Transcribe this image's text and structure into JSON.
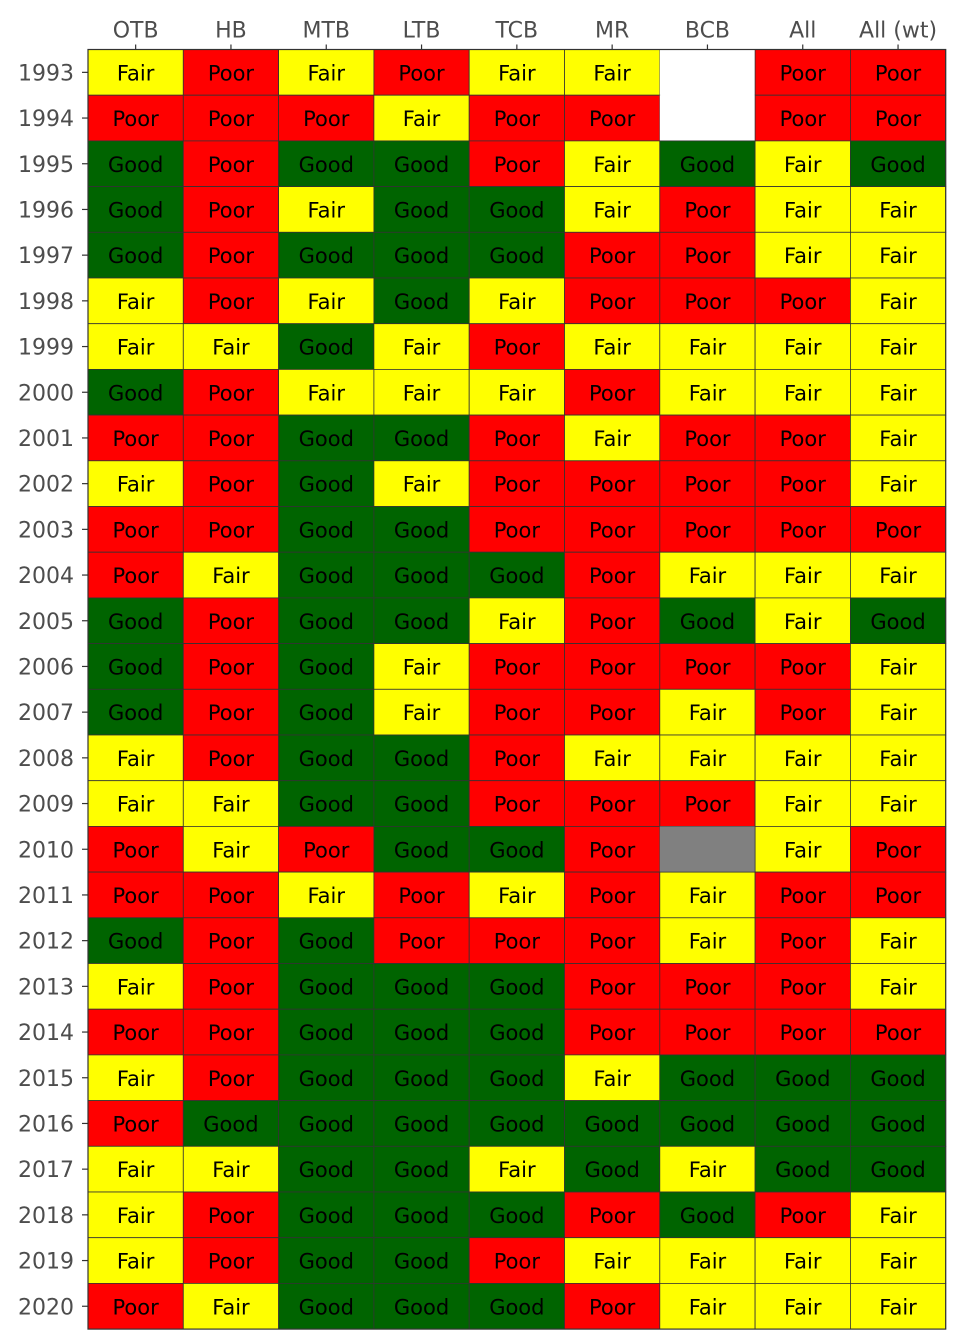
{
  "chart_data": {
    "type": "heatmap",
    "columns": [
      "OTB",
      "HB",
      "MTB",
      "LTB",
      "TCB",
      "MR",
      "BCB",
      "All",
      "All (wt)"
    ],
    "rows": [
      "1993",
      "1994",
      "1995",
      "1996",
      "1997",
      "1998",
      "1999",
      "2000",
      "2001",
      "2002",
      "2003",
      "2004",
      "2005",
      "2006",
      "2007",
      "2008",
      "2009",
      "2010",
      "2011",
      "2012",
      "2013",
      "2014",
      "2015",
      "2016",
      "2017",
      "2018",
      "2019",
      "2020"
    ],
    "values": [
      [
        "Fair",
        "Poor",
        "Fair",
        "Poor",
        "Fair",
        "Fair",
        "",
        "Poor",
        "Poor"
      ],
      [
        "Poor",
        "Poor",
        "Poor",
        "Fair",
        "Poor",
        "Poor",
        "",
        "Poor",
        "Poor"
      ],
      [
        "Good",
        "Poor",
        "Good",
        "Good",
        "Poor",
        "Fair",
        "Good",
        "Fair",
        "Good"
      ],
      [
        "Good",
        "Poor",
        "Fair",
        "Good",
        "Good",
        "Fair",
        "Poor",
        "Fair",
        "Fair"
      ],
      [
        "Good",
        "Poor",
        "Good",
        "Good",
        "Good",
        "Poor",
        "Poor",
        "Fair",
        "Fair"
      ],
      [
        "Fair",
        "Poor",
        "Fair",
        "Good",
        "Fair",
        "Poor",
        "Poor",
        "Poor",
        "Fair"
      ],
      [
        "Fair",
        "Fair",
        "Good",
        "Fair",
        "Poor",
        "Fair",
        "Fair",
        "Fair",
        "Fair"
      ],
      [
        "Good",
        "Poor",
        "Fair",
        "Fair",
        "Fair",
        "Poor",
        "Fair",
        "Fair",
        "Fair"
      ],
      [
        "Poor",
        "Poor",
        "Good",
        "Good",
        "Poor",
        "Fair",
        "Poor",
        "Poor",
        "Fair"
      ],
      [
        "Fair",
        "Poor",
        "Good",
        "Fair",
        "Poor",
        "Poor",
        "Poor",
        "Poor",
        "Fair"
      ],
      [
        "Poor",
        "Poor",
        "Good",
        "Good",
        "Poor",
        "Poor",
        "Poor",
        "Poor",
        "Poor"
      ],
      [
        "Poor",
        "Fair",
        "Good",
        "Good",
        "Good",
        "Poor",
        "Fair",
        "Fair",
        "Fair"
      ],
      [
        "Good",
        "Poor",
        "Good",
        "Good",
        "Fair",
        "Poor",
        "Good",
        "Fair",
        "Good"
      ],
      [
        "Good",
        "Poor",
        "Good",
        "Fair",
        "Poor",
        "Poor",
        "Poor",
        "Poor",
        "Fair"
      ],
      [
        "Good",
        "Poor",
        "Good",
        "Fair",
        "Poor",
        "Poor",
        "Fair",
        "Poor",
        "Fair"
      ],
      [
        "Fair",
        "Poor",
        "Good",
        "Good",
        "Poor",
        "Fair",
        "Fair",
        "Fair",
        "Fair"
      ],
      [
        "Fair",
        "Fair",
        "Good",
        "Good",
        "Poor",
        "Poor",
        "Poor",
        "Fair",
        "Fair"
      ],
      [
        "Poor",
        "Fair",
        "Poor",
        "Good",
        "Good",
        "Poor",
        "NA",
        "Fair",
        "Poor"
      ],
      [
        "Poor",
        "Poor",
        "Fair",
        "Poor",
        "Fair",
        "Poor",
        "Fair",
        "Poor",
        "Poor"
      ],
      [
        "Good",
        "Poor",
        "Good",
        "Poor",
        "Poor",
        "Poor",
        "Fair",
        "Poor",
        "Fair"
      ],
      [
        "Fair",
        "Poor",
        "Good",
        "Good",
        "Good",
        "Poor",
        "Poor",
        "Poor",
        "Fair"
      ],
      [
        "Poor",
        "Poor",
        "Good",
        "Good",
        "Good",
        "Poor",
        "Poor",
        "Poor",
        "Poor"
      ],
      [
        "Fair",
        "Poor",
        "Good",
        "Good",
        "Good",
        "Fair",
        "Good",
        "Good",
        "Good"
      ],
      [
        "Poor",
        "Good",
        "Good",
        "Good",
        "Good",
        "Good",
        "Good",
        "Good",
        "Good"
      ],
      [
        "Fair",
        "Fair",
        "Good",
        "Good",
        "Fair",
        "Good",
        "Fair",
        "Good",
        "Good"
      ],
      [
        "Fair",
        "Poor",
        "Good",
        "Good",
        "Good",
        "Poor",
        "Good",
        "Poor",
        "Fair"
      ],
      [
        "Fair",
        "Poor",
        "Good",
        "Good",
        "Poor",
        "Fair",
        "Fair",
        "Fair",
        "Fair"
      ],
      [
        "Poor",
        "Fair",
        "Good",
        "Good",
        "Good",
        "Poor",
        "Fair",
        "Fair",
        "Fair"
      ]
    ],
    "colors": {
      "Good": "#006400",
      "Fair": "#ffff00",
      "Poor": "#ff0000",
      "NA": "#808080",
      "": "#ffffff"
    },
    "x_axis_position": "top",
    "legend": "none",
    "grid": false
  }
}
